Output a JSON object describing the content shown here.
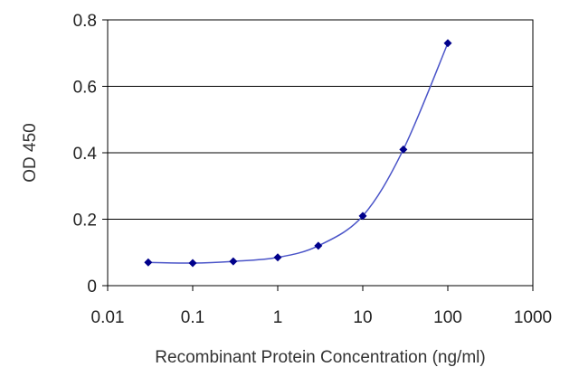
{
  "chart_data": {
    "type": "line",
    "title": "",
    "xlabel": "Recombinant Protein Concentration (ng/ml)",
    "ylabel": "OD 450",
    "x_scale": "log",
    "xlim": [
      0.01,
      1000
    ],
    "ylim": [
      0,
      0.8
    ],
    "x_ticks": [
      "0.01",
      "0.1",
      "1",
      "10",
      "100",
      "1000"
    ],
    "y_ticks": [
      "0",
      "0.2",
      "0.4",
      "0.6",
      "0.8"
    ],
    "grid": "horizontal",
    "legend": "none",
    "series": [
      {
        "x": [
          0.03,
          0.1,
          0.3,
          1,
          3,
          10,
          30,
          100
        ],
        "y": [
          0.07,
          0.068,
          0.073,
          0.085,
          0.12,
          0.21,
          0.41,
          0.73
        ],
        "color": "#00008b",
        "line_color": "#4a54c8"
      }
    ]
  }
}
